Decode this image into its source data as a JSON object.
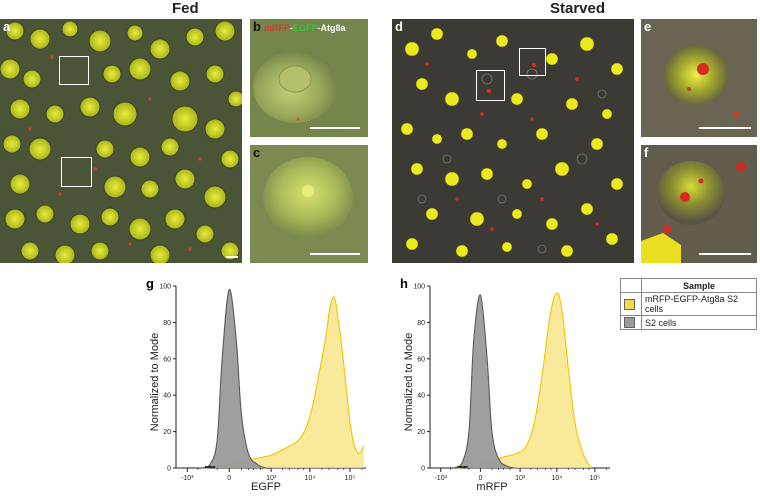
{
  "headings": {
    "fed": "Fed",
    "starved": "Starved"
  },
  "panels": {
    "a": "a",
    "b": "b",
    "c": "c",
    "d": "d",
    "e": "e",
    "f": "f",
    "g": "g",
    "h": "h"
  },
  "construct_label": {
    "mrfp": "mRFP",
    "sep1": "-",
    "egfp": "EGFP",
    "sep2": "-",
    "atg8a": "Atg8a"
  },
  "colors": {
    "mrfp": "#e8312a",
    "egfp": "#3fbf3f",
    "yellow_fill": "#f7e27a",
    "yellow_line": "#f2c400",
    "gray_fill": "#9a9a9a",
    "gray_line": "#5a5a5a"
  },
  "legend": {
    "header": "Sample",
    "items": [
      {
        "label": "mRFP-EGFP-Atg8a S2 cells",
        "color": "#f7d84a"
      },
      {
        "label": "S2 cells",
        "color": "#9a9a9a"
      }
    ]
  },
  "chart_data": [
    {
      "type": "area",
      "panel": "g",
      "xlabel": "EGFP",
      "ylabel": "Normalized to Mode",
      "xscale": "biexponential",
      "xticks": [
        "-10³",
        "0",
        "10³",
        "10⁴",
        "10⁵"
      ],
      "yticks": [
        "0",
        "20",
        "40",
        "60",
        "80",
        "100"
      ],
      "ylim": [
        0,
        100
      ],
      "series": [
        {
          "name": "S2 cells",
          "x": [
            -400,
            -200,
            -100,
            -50,
            0,
            50,
            100,
            200,
            400,
            700,
            1000
          ],
          "y": [
            0,
            2,
            15,
            60,
            98,
            70,
            30,
            8,
            2,
            0,
            0
          ]
        },
        {
          "name": "mRFP-EGFP-Atg8a S2 cells",
          "x": [
            -300,
            0,
            300,
            1000,
            2000,
            3000,
            5000,
            8000,
            12000,
            18000,
            25000,
            30000,
            35000,
            40000,
            45000,
            50000,
            60000,
            80000,
            100000,
            130000,
            170000,
            220000
          ],
          "y": [
            0,
            2,
            5,
            7,
            10,
            12,
            15,
            22,
            35,
            55,
            72,
            85,
            92,
            94,
            90,
            82,
            70,
            45,
            25,
            12,
            8,
            12
          ]
        }
      ]
    },
    {
      "type": "area",
      "panel": "h",
      "xlabel": "mRFP",
      "ylabel": "Normalized to Mode",
      "xscale": "biexponential",
      "xticks": [
        "-10³",
        "0",
        "10³",
        "10⁴",
        "10⁵"
      ],
      "yticks": [
        "0",
        "20",
        "40",
        "60",
        "80",
        "100"
      ],
      "ylim": [
        0,
        100
      ],
      "series": [
        {
          "name": "S2 cells",
          "x": [
            -400,
            -200,
            -100,
            -50,
            0,
            50,
            100,
            200,
            400,
            700
          ],
          "y": [
            0,
            3,
            20,
            70,
            95,
            60,
            20,
            5,
            1,
            0
          ]
        },
        {
          "name": "mRFP-EGFP-Atg8a S2 cells",
          "x": [
            -300,
            0,
            300,
            800,
            1500,
            2500,
            4000,
            6000,
            8000,
            10000,
            12000,
            15000,
            20000,
            30000,
            45000,
            60000,
            80000
          ],
          "y": [
            0,
            2,
            6,
            8,
            12,
            25,
            50,
            78,
            92,
            96,
            93,
            80,
            55,
            25,
            10,
            4,
            0
          ]
        }
      ]
    }
  ]
}
